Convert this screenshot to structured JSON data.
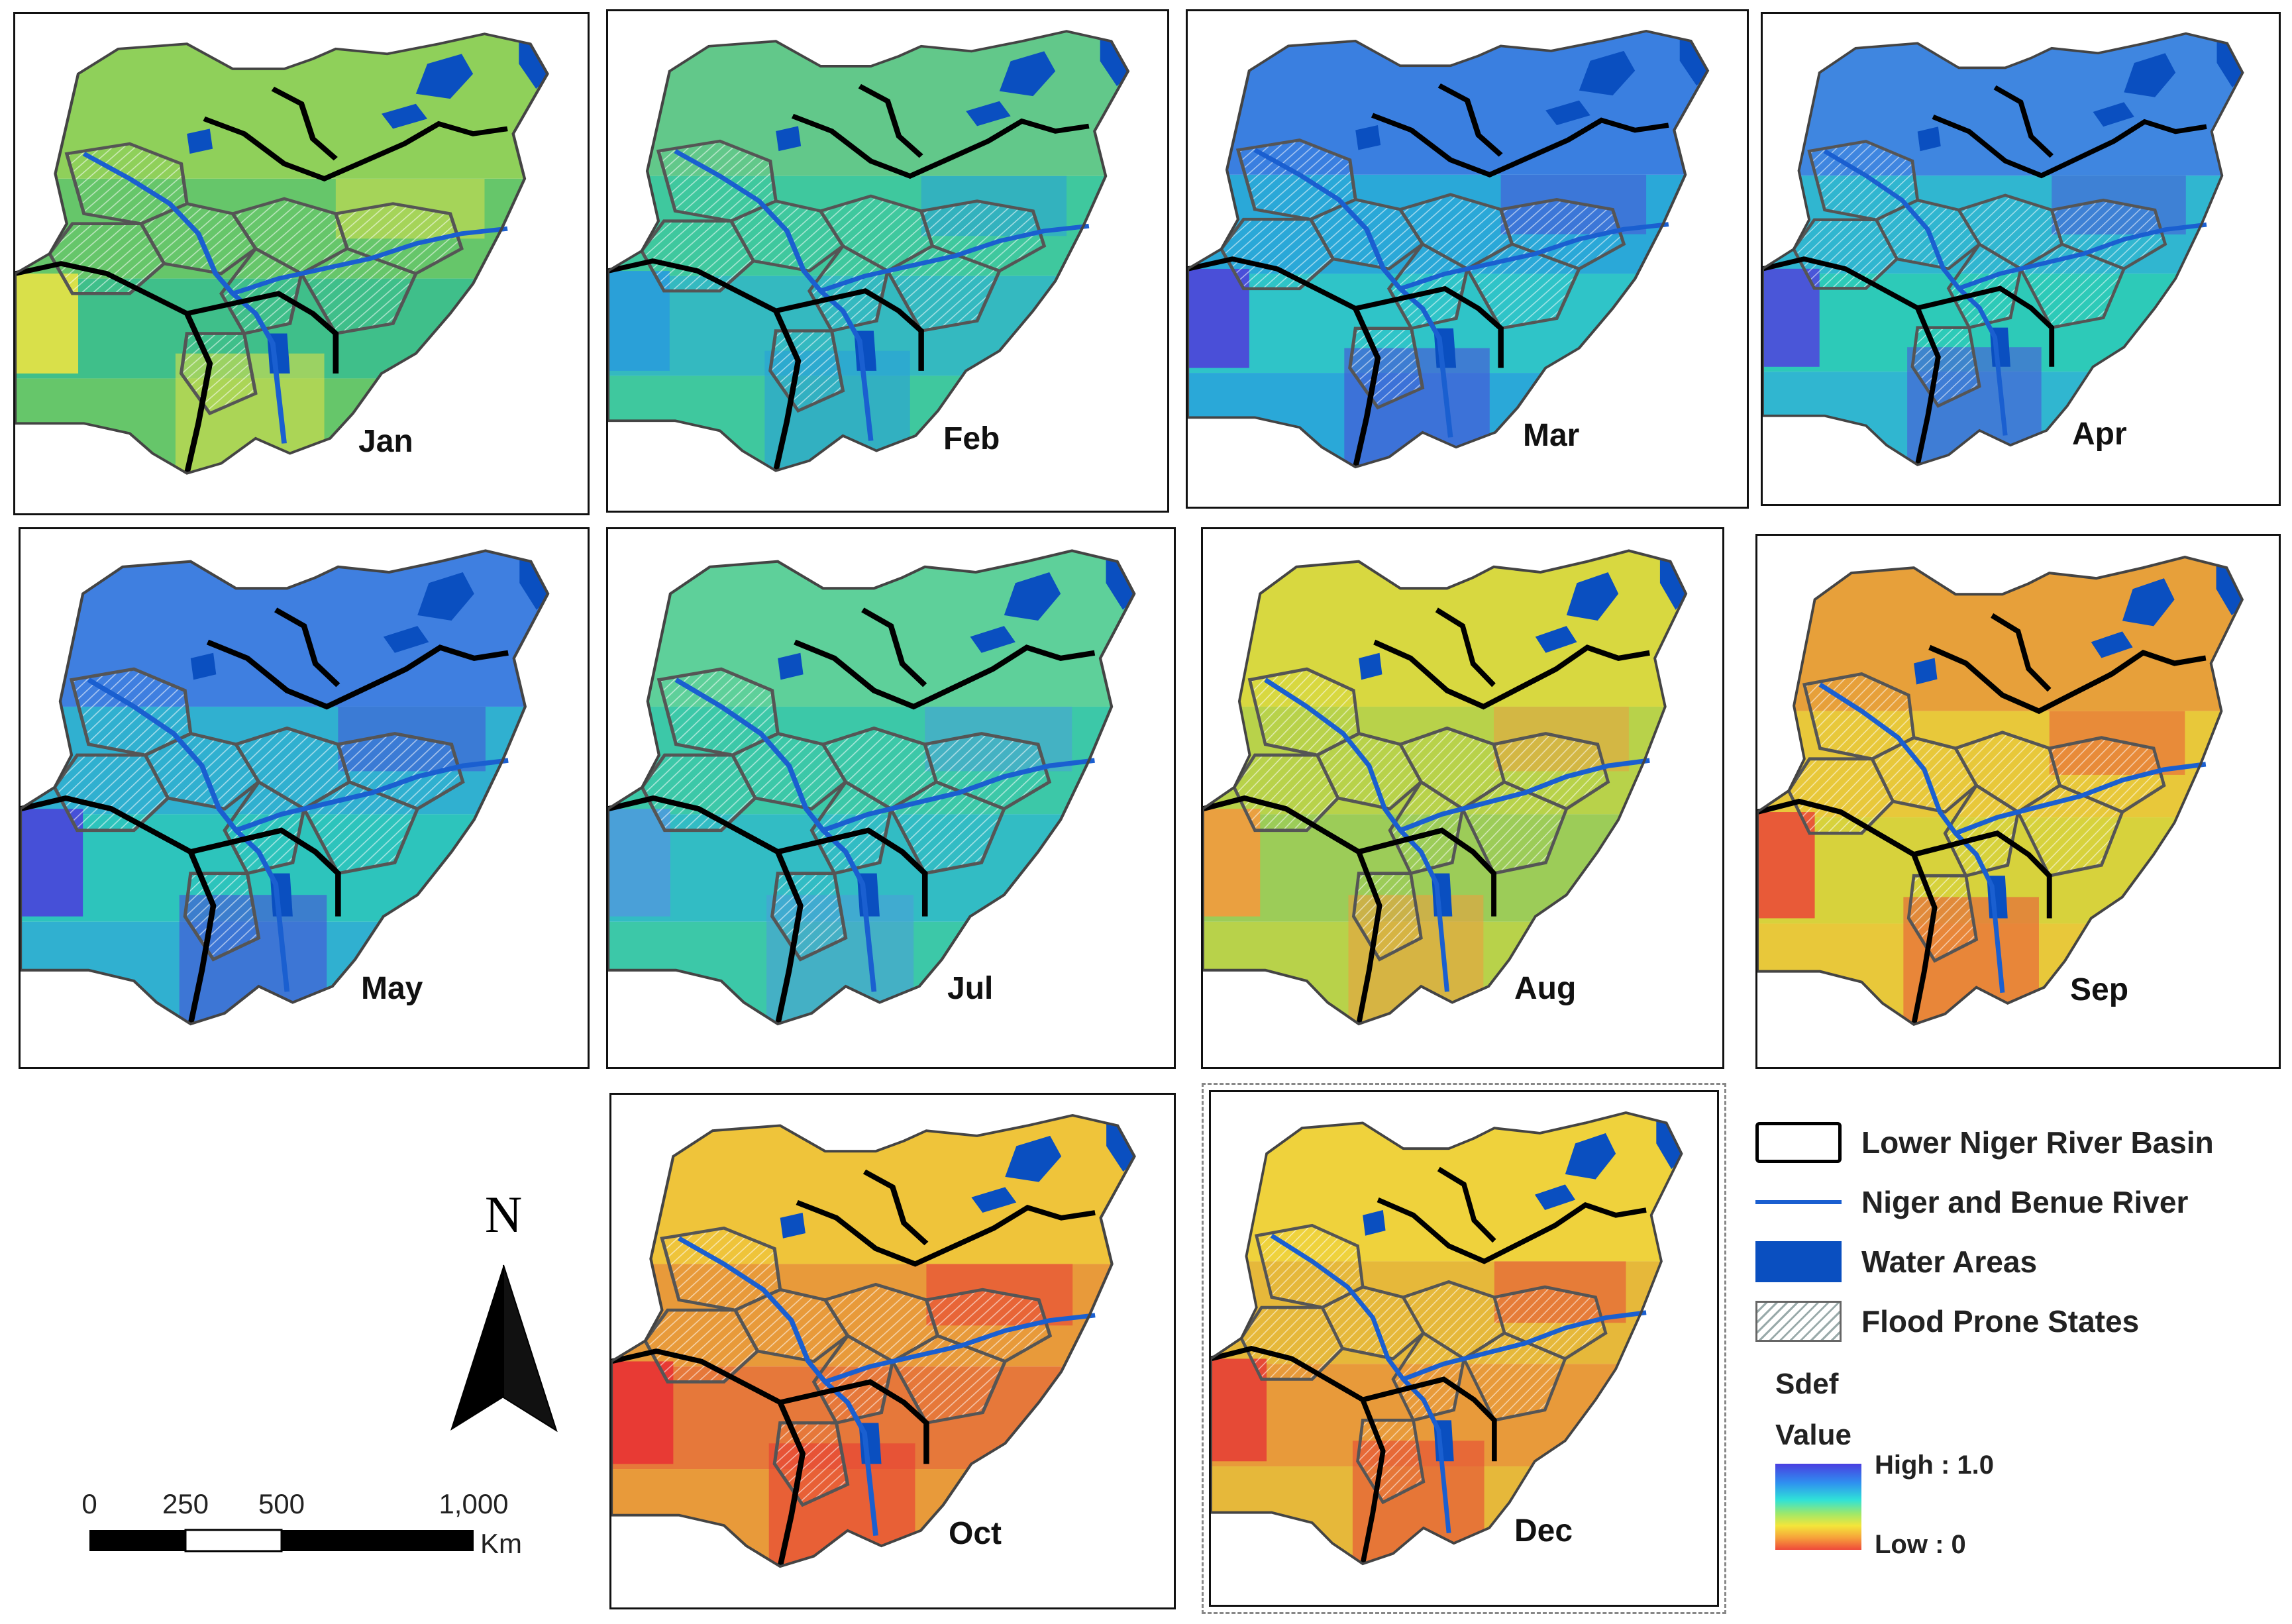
{
  "panels": [
    {
      "month": "Jan",
      "colors": [
        "#66c66a",
        "#8fd05a",
        "#3fbf8a",
        "#d9e04a"
      ]
    },
    {
      "month": "Feb",
      "colors": [
        "#3fc89e",
        "#62c88a",
        "#34b9c0",
        "#2aa0d8"
      ]
    },
    {
      "month": "Mar",
      "colors": [
        "#2aa8d8",
        "#3a7fe0",
        "#2fc4c8",
        "#4a4fd8"
      ]
    },
    {
      "month": "Apr",
      "colors": [
        "#30b6d0",
        "#3f86e0",
        "#2dcab8",
        "#4a56d8"
      ]
    },
    {
      "month": "May",
      "colors": [
        "#30b0d0",
        "#3f7fe0",
        "#2dc4bc",
        "#4650d8"
      ]
    },
    {
      "month": "Jul",
      "colors": [
        "#3cc8a8",
        "#5ed09a",
        "#32bcc4",
        "#4aa0d8"
      ]
    },
    {
      "month": "Aug",
      "colors": [
        "#b8d24a",
        "#d8d840",
        "#9ccc58",
        "#eaa040"
      ]
    },
    {
      "month": "Sep",
      "colors": [
        "#e8c83a",
        "#e7a03a",
        "#d7d23c",
        "#e85a38"
      ]
    },
    {
      "month": "Oct",
      "colors": [
        "#e89a3a",
        "#efc43a",
        "#e6783a",
        "#e83a34"
      ]
    },
    {
      "month": "Dec",
      "colors": [
        "#e6b83a",
        "#efd23c",
        "#e89a3a",
        "#e64a36"
      ]
    }
  ],
  "legend": {
    "basin": "Lower Niger River Basin",
    "river": "Niger and Benue River",
    "water": "Water Areas",
    "flood": "Flood Prone States",
    "title1": "Sdef",
    "title2": "Value",
    "high": "High : 1.0",
    "low": "Low : 0"
  },
  "north_label": "N",
  "scale": {
    "ticks": [
      "0",
      "250",
      "500",
      "1,000"
    ],
    "unit": "Km"
  },
  "colors": {
    "water": "#0a4fc0",
    "river": "#1a5fd0",
    "basin": "#000000",
    "states": "#555555"
  }
}
